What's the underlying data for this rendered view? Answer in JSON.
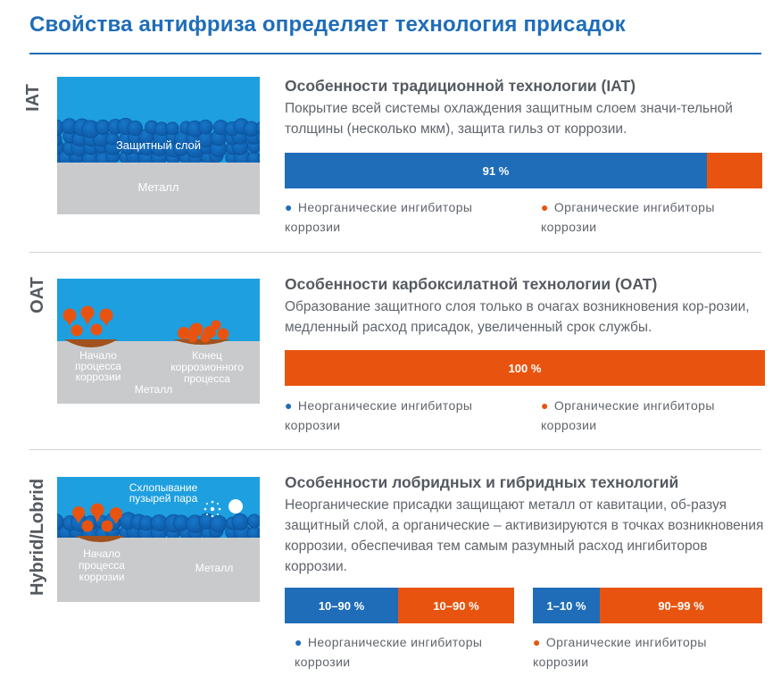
{
  "title": "Свойства антифриза определяет технология присадок",
  "sections": [
    {
      "label": "IAT",
      "heading": "Особенности традиционной технологии (IAT)",
      "description": "Покрытие всей системы охлаждения защитным слоем значи-тельной толщины (несколько мкм), защита гильз от коррозии.",
      "illustration": {
        "protective_layer": "Защитный слой",
        "metal": "Металл"
      },
      "bar": {
        "inorganic_pct": 91,
        "inorganic_label": "91 %",
        "organic_label": ""
      },
      "legend": {
        "inorganic": "Неорганические ингибиторы коррозии",
        "organic": "Органические ингибиторы коррозии"
      }
    },
    {
      "label": "OAT",
      "heading": "Особенности карбоксилатной технологии (OAT)",
      "description": "Образование защитного слоя только в очагах возникновения кор-розии, медленный расход присадок, увеличенный срок службы.",
      "illustration": {
        "start": "Начало процесса коррозии",
        "end": "Конец коррозионного процесса",
        "metal": "Металл"
      },
      "bar": {
        "organic_pct": 100,
        "organic_label": "100 %"
      },
      "legend": {
        "inorganic": "Неорганические ингибиторы коррозии",
        "organic": "Органические ингибиторы коррозии"
      }
    },
    {
      "label": "Hybrid/Lobrid",
      "heading": "Особенности лобридных и гибридных технологий",
      "description": "Неорганические присадки защищают металл от кавитации, об-разуя защитный слой, а органические – активизируются в точках возникновения коррозии, обеспечивая тем самым разумный расход ингибиторов коррозии.",
      "illustration": {
        "bubbles": "Схлопывание пузырей пара",
        "start": "Начало процесса коррозии",
        "metal": "Металл"
      },
      "bars": [
        {
          "blue_label": "10–90 %",
          "orange_label": "10–90 %",
          "blue_pct": 50
        },
        {
          "blue_label": "1–10 %",
          "orange_label": "90–99 %",
          "blue_pct": 29
        }
      ],
      "legend": {
        "inorganic": "Неорганические ингибиторы коррозии",
        "organic": "Органические ингибиторы коррозии"
      }
    }
  ],
  "colors": {
    "blue": "#1f6db8",
    "orange": "#e8540f",
    "water": "#1e9fe0",
    "metal": "#c9cacc"
  }
}
